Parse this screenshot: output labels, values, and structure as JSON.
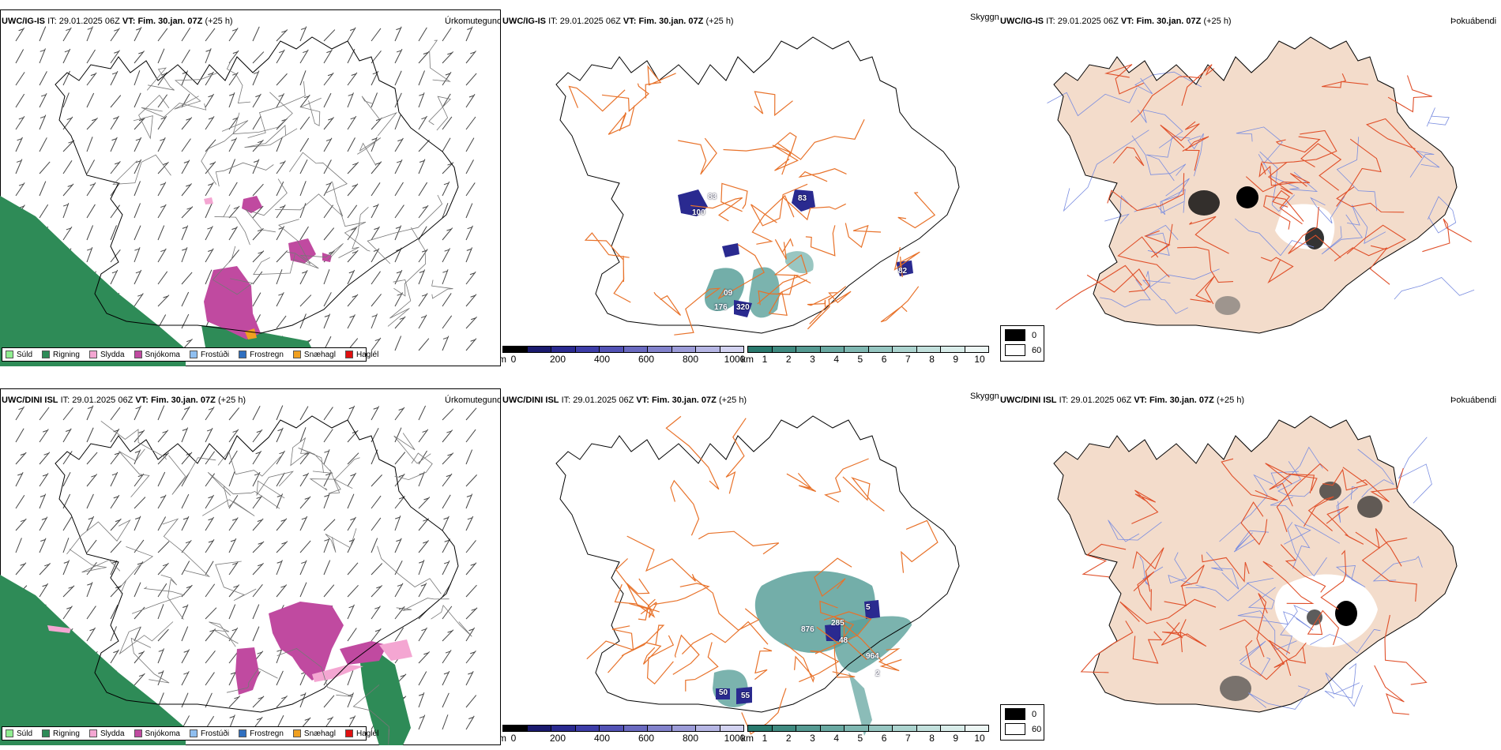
{
  "rows": [
    {
      "model": "UWC/IG-IS",
      "it_label": "IT:",
      "it_value": "29.01.2025 06Z",
      "vt_label": "VT:",
      "vt_value": "Fim. 30.jan. 07Z",
      "lead": "(+25 h)",
      "visibility_labels": [
        "83",
        "100",
        "83",
        "82",
        "09",
        "176",
        "320"
      ]
    },
    {
      "model": "UWC/DINI ISL",
      "it_label": "IT:",
      "it_value": "29.01.2025 06Z",
      "vt_label": "VT:",
      "vt_value": "Fim. 30.jan. 07Z",
      "lead": "(+25 h)",
      "visibility_labels": [
        "5",
        "876",
        "285",
        "48",
        "964",
        "2",
        "50",
        "55"
      ]
    }
  ],
  "panels": {
    "precip_title": "Úrkomutegund",
    "visibility_title": "Skyggni",
    "fog_title": "Þokuábendi"
  },
  "precip_legend": [
    {
      "label": "Súld",
      "color": "#90ee90"
    },
    {
      "label": "Rigning",
      "color": "#2e8b57"
    },
    {
      "label": "Slydda",
      "color": "#f4a6d2"
    },
    {
      "label": "Snjókoma",
      "color": "#c04aa0"
    },
    {
      "label": "Frostúði",
      "color": "#8fbff0"
    },
    {
      "label": "Frostregn",
      "color": "#3070c0"
    },
    {
      "label": "Snæhagl",
      "color": "#f0a020"
    },
    {
      "label": "Haglél",
      "color": "#e01010"
    }
  ],
  "ceiling_bar": {
    "unit": "m",
    "ticks": [
      "0",
      "200",
      "400",
      "600",
      "800",
      "1000"
    ],
    "colors": [
      "#000000",
      "#1a1a6e",
      "#2a2a90",
      "#3d3da8",
      "#5252b5",
      "#6a6ac0",
      "#8282cc",
      "#9c9cd8",
      "#b6b6e4",
      "#d2d2f0"
    ]
  },
  "visibility_bar": {
    "unit": "km",
    "ticks": [
      "1",
      "2",
      "3",
      "4",
      "5",
      "6",
      "7",
      "8",
      "9",
      "10"
    ],
    "colors": [
      "#2a7a6e",
      "#3f8a80",
      "#559a92",
      "#6aa9a2",
      "#80b8b2",
      "#96c6c1",
      "#acd4cf",
      "#c2e0dc",
      "#d8ece9",
      "#ecf6f4"
    ]
  },
  "fog_legend": [
    {
      "label": "0",
      "color": "#000000"
    },
    {
      "label": "60",
      "color": "#ffffff"
    }
  ],
  "colors": {
    "land": "#f3dccb",
    "roads": "#e8722a",
    "fog_roads": "#e0502a",
    "rivers": "#7a8de0",
    "coast": "#000000",
    "rain": "#2e8b57",
    "snow": "#c04aa0",
    "sleet": "#f4a6d2",
    "vis_fill": "#5aa09a",
    "ceiling_fill": "#2a2a90"
  }
}
